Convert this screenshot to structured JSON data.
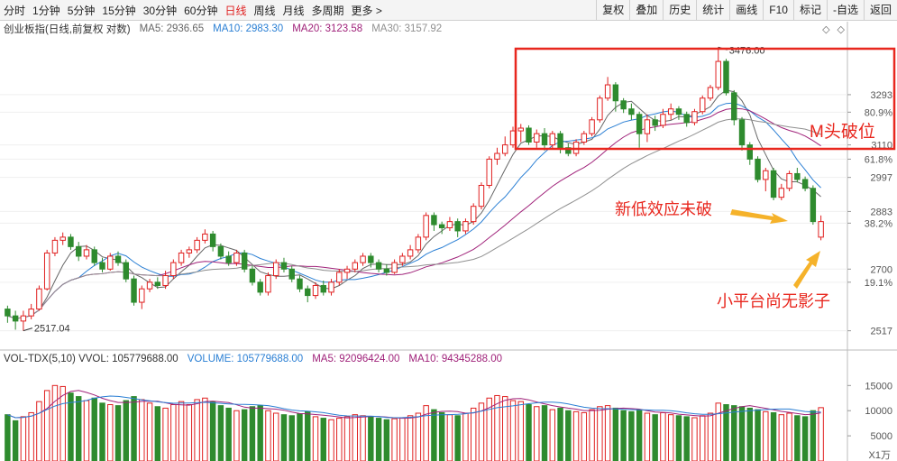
{
  "toolbar": {
    "left_items": [
      "分时",
      "1分钟",
      "5分钟",
      "15分钟",
      "30分钟",
      "60分钟",
      "日线",
      "周线",
      "月线",
      "多周期",
      "更多 >"
    ],
    "active_item": "日线",
    "right_buttons": [
      "复权",
      "叠加",
      "历史",
      "统计",
      "画线",
      "F10",
      "标记",
      "-自选",
      "返回"
    ]
  },
  "main_legend": {
    "title": "创业板指(日线,前复权 对数)",
    "ma": [
      {
        "label": "MA5: 2936.65",
        "color": "#666666"
      },
      {
        "label": "MA10: 2983.30",
        "color": "#2a7fd4"
      },
      {
        "label": "MA20: 3123.58",
        "color": "#a0227a"
      },
      {
        "label": "MA30: 3157.92",
        "color": "#909090"
      }
    ]
  },
  "volume_legend": {
    "title": "VOL-TDX(5,10)  VVOL: 105779688.00",
    "items": [
      {
        "label": "VOLUME: 105779688.00",
        "color": "#2a7fd4"
      },
      {
        "label": "MA5: 92096424.00",
        "color": "#a0227a"
      },
      {
        "label": "MA10: 94345288.00",
        "color": "#a0227a"
      }
    ]
  },
  "price_axis": [
    {
      "price": 3293,
      "text": "3293"
    },
    {
      "price": 3228,
      "text": "80.9%"
    },
    {
      "price": 3110,
      "text": "3110"
    },
    {
      "price": 3060,
      "text": "61.8%"
    },
    {
      "price": 2997,
      "text": "2997"
    },
    {
      "price": 2883,
      "text": "2883"
    },
    {
      "price": 2845,
      "text": "38.2%"
    },
    {
      "price": 2700,
      "text": "2700"
    },
    {
      "price": 2660,
      "text": "19.1%"
    },
    {
      "price": 2517,
      "text": "2517"
    }
  ],
  "volume_axis": [
    {
      "value": 15000,
      "text": "15000"
    },
    {
      "value": 10000,
      "text": "10000"
    },
    {
      "value": 5000,
      "text": "5000"
    }
  ],
  "volume_unit": "X1万",
  "annotations": {
    "high_label": "3476.00",
    "low_label": "2517.04",
    "box_label": "M头破位",
    "arrow1_label": "新低效应未破",
    "arrow2_label": "小平台尚无影子"
  },
  "colors": {
    "up": "#e02020",
    "down": "#2e8b2e",
    "annotation": "#e8271e",
    "arrow": "#f5b22a"
  },
  "chart_data": {
    "type": "candlestick",
    "title": "创业板指(日线,前复权 对数)",
    "high": 3476.0,
    "low": 2517.04,
    "candles": [
      [
        2580,
        2560,
        2590,
        2540,
        92
      ],
      [
        2560,
        2545,
        2575,
        2520,
        80
      ],
      [
        2545,
        2560,
        2575,
        2517,
        88
      ],
      [
        2560,
        2580,
        2595,
        2550,
        96
      ],
      [
        2580,
        2640,
        2650,
        2575,
        118
      ],
      [
        2640,
        2750,
        2760,
        2635,
        140
      ],
      [
        2750,
        2790,
        2800,
        2740,
        150
      ],
      [
        2790,
        2800,
        2815,
        2775,
        148
      ],
      [
        2800,
        2770,
        2810,
        2760,
        135
      ],
      [
        2770,
        2740,
        2785,
        2725,
        128
      ],
      [
        2740,
        2760,
        2775,
        2730,
        120
      ],
      [
        2760,
        2720,
        2770,
        2710,
        125
      ],
      [
        2720,
        2700,
        2735,
        2690,
        115
      ],
      [
        2700,
        2740,
        2750,
        2695,
        112
      ],
      [
        2740,
        2720,
        2755,
        2710,
        110
      ],
      [
        2720,
        2670,
        2730,
        2660,
        120
      ],
      [
        2670,
        2600,
        2680,
        2590,
        128
      ],
      [
        2600,
        2640,
        2650,
        2580,
        122
      ],
      [
        2640,
        2660,
        2670,
        2630,
        115
      ],
      [
        2660,
        2650,
        2675,
        2640,
        108
      ],
      [
        2650,
        2680,
        2695,
        2640,
        105
      ],
      [
        2680,
        2720,
        2730,
        2670,
        112
      ],
      [
        2720,
        2750,
        2760,
        2710,
        118
      ],
      [
        2750,
        2760,
        2770,
        2735,
        112
      ],
      [
        2760,
        2790,
        2800,
        2750,
        122
      ],
      [
        2790,
        2810,
        2825,
        2780,
        125
      ],
      [
        2810,
        2770,
        2820,
        2755,
        118
      ],
      [
        2770,
        2740,
        2780,
        2730,
        110
      ],
      [
        2740,
        2720,
        2755,
        2710,
        105
      ],
      [
        2720,
        2750,
        2760,
        2710,
        100
      ],
      [
        2750,
        2700,
        2760,
        2690,
        102
      ],
      [
        2700,
        2660,
        2710,
        2650,
        108
      ],
      [
        2660,
        2630,
        2670,
        2620,
        110
      ],
      [
        2630,
        2680,
        2690,
        2620,
        100
      ],
      [
        2680,
        2720,
        2730,
        2670,
        95
      ],
      [
        2720,
        2700,
        2735,
        2690,
        92
      ],
      [
        2700,
        2670,
        2710,
        2660,
        90
      ],
      [
        2670,
        2640,
        2680,
        2630,
        94
      ],
      [
        2640,
        2620,
        2650,
        2600,
        98
      ],
      [
        2620,
        2650,
        2660,
        2610,
        88
      ],
      [
        2650,
        2630,
        2665,
        2620,
        85
      ],
      [
        2630,
        2660,
        2670,
        2620,
        82
      ],
      [
        2660,
        2690,
        2700,
        2650,
        85
      ],
      [
        2690,
        2700,
        2710,
        2670,
        88
      ],
      [
        2700,
        2720,
        2730,
        2690,
        92
      ],
      [
        2720,
        2740,
        2750,
        2710,
        90
      ],
      [
        2740,
        2720,
        2750,
        2705,
        88
      ],
      [
        2720,
        2700,
        2730,
        2690,
        85
      ],
      [
        2700,
        2690,
        2715,
        2680,
        82
      ],
      [
        2690,
        2720,
        2730,
        2685,
        84
      ],
      [
        2720,
        2740,
        2750,
        2710,
        86
      ],
      [
        2740,
        2760,
        2775,
        2730,
        90
      ],
      [
        2760,
        2800,
        2810,
        2750,
        95
      ],
      [
        2800,
        2870,
        2880,
        2790,
        110
      ],
      [
        2870,
        2840,
        2880,
        2820,
        102
      ],
      [
        2840,
        2830,
        2850,
        2810,
        96
      ],
      [
        2830,
        2850,
        2865,
        2820,
        92
      ],
      [
        2850,
        2820,
        2860,
        2800,
        90
      ],
      [
        2820,
        2850,
        2860,
        2810,
        95
      ],
      [
        2850,
        2900,
        2910,
        2840,
        105
      ],
      [
        2900,
        2970,
        2980,
        2890,
        115
      ],
      [
        2970,
        3060,
        3070,
        2960,
        125
      ],
      [
        3060,
        3080,
        3100,
        3040,
        130
      ],
      [
        3080,
        3110,
        3140,
        3070,
        128
      ],
      [
        3110,
        3160,
        3175,
        3100,
        120
      ],
      [
        3160,
        3170,
        3185,
        3120,
        118
      ],
      [
        3170,
        3120,
        3180,
        3110,
        112
      ],
      [
        3120,
        3150,
        3165,
        3100,
        108
      ],
      [
        3150,
        3110,
        3170,
        3090,
        110
      ],
      [
        3110,
        3150,
        3160,
        3095,
        102
      ],
      [
        3150,
        3100,
        3160,
        3080,
        105
      ],
      [
        3100,
        3080,
        3115,
        3070,
        100
      ],
      [
        3080,
        3120,
        3130,
        3070,
        98
      ],
      [
        3120,
        3150,
        3160,
        3110,
        96
      ],
      [
        3150,
        3200,
        3210,
        3140,
        102
      ],
      [
        3200,
        3280,
        3290,
        3190,
        108
      ],
      [
        3280,
        3330,
        3360,
        3270,
        110
      ],
      [
        3330,
        3270,
        3340,
        3230,
        105
      ],
      [
        3270,
        3240,
        3280,
        3225,
        100
      ],
      [
        3240,
        3220,
        3260,
        3200,
        98
      ],
      [
        3220,
        3150,
        3230,
        3100,
        102
      ],
      [
        3150,
        3200,
        3220,
        3120,
        95
      ],
      [
        3200,
        3180,
        3215,
        3160,
        92
      ],
      [
        3180,
        3220,
        3240,
        3170,
        96
      ],
      [
        3220,
        3240,
        3260,
        3200,
        92
      ],
      [
        3240,
        3220,
        3250,
        3200,
        90
      ],
      [
        3220,
        3190,
        3230,
        3175,
        88
      ],
      [
        3190,
        3230,
        3240,
        3180,
        86
      ],
      [
        3230,
        3280,
        3290,
        3220,
        90
      ],
      [
        3280,
        3320,
        3330,
        3270,
        95
      ],
      [
        3320,
        3420,
        3476,
        3310,
        115
      ],
      [
        3420,
        3300,
        3430,
        3290,
        112
      ],
      [
        3300,
        3200,
        3310,
        3180,
        110
      ],
      [
        3200,
        3110,
        3210,
        3090,
        108
      ],
      [
        3110,
        3060,
        3120,
        3040,
        105
      ],
      [
        3060,
        2990,
        3070,
        2980,
        102
      ],
      [
        2990,
        3020,
        3030,
        2950,
        98
      ],
      [
        3020,
        2930,
        3030,
        2920,
        96
      ],
      [
        2930,
        2960,
        2975,
        2920,
        92
      ],
      [
        2960,
        3010,
        3020,
        2950,
        95
      ],
      [
        3010,
        2990,
        3030,
        2980,
        90
      ],
      [
        2990,
        2960,
        3000,
        2950,
        88
      ],
      [
        2960,
        2850,
        2970,
        2840,
        100
      ],
      [
        2800,
        2850,
        2870,
        2790,
        106
      ]
    ]
  }
}
